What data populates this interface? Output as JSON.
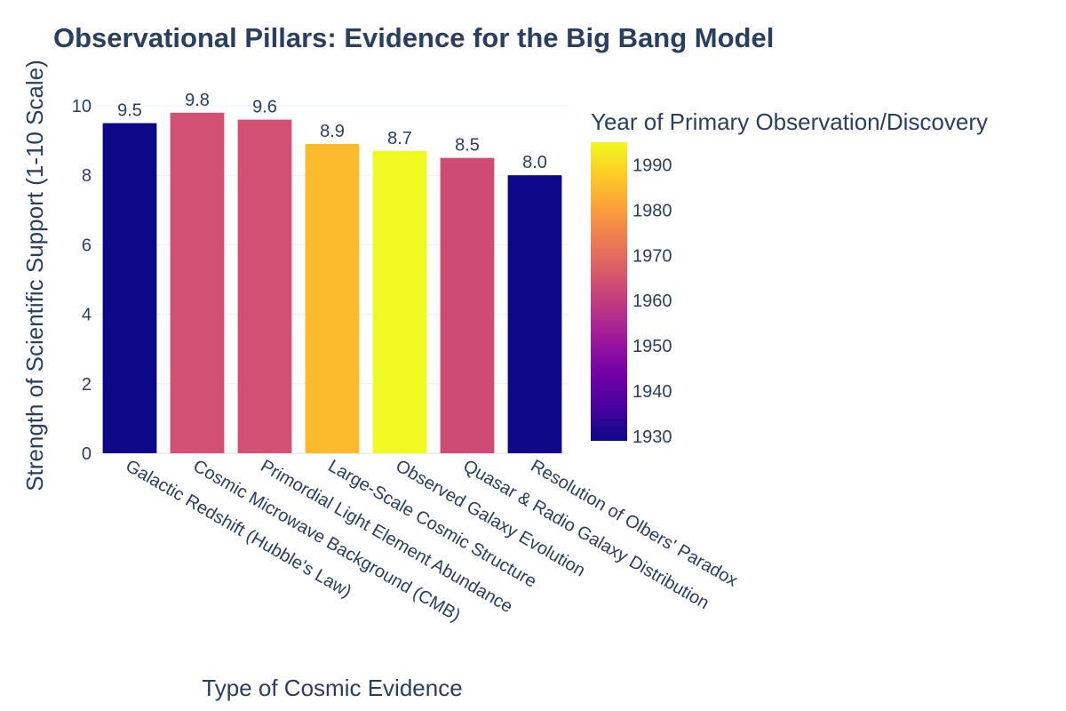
{
  "chart_data": {
    "type": "bar",
    "title": "Observational Pillars: Evidence for the Big Bang Model",
    "xlabel": "Type of Cosmic Evidence",
    "ylabel": "Strength of Scientific Support (1-10 Scale)",
    "ylim": [
      0,
      10
    ],
    "yticks": [
      "0",
      "2",
      "4",
      "6",
      "8",
      "10"
    ],
    "categories": [
      "Galactic Redshift (Hubble's Law)",
      "Cosmic Microwave Background (CMB)",
      "Primordial Light Element Abundance",
      "Large-Scale Cosmic Structure",
      "Observed Galaxy Evolution",
      "Quasar & Radio Galaxy Distribution",
      "Resolution of Olbers' Paradox"
    ],
    "values": [
      9.5,
      9.8,
      9.6,
      8.9,
      8.7,
      8.5,
      8.0
    ],
    "value_labels": [
      "9.5",
      "9.8",
      "9.6",
      "8.9",
      "8.7",
      "8.5",
      "8.0"
    ],
    "color_values": [
      1929,
      1964,
      1964,
      1985,
      1995,
      1963,
      1929
    ],
    "grid": true,
    "colorbar": {
      "title": "Year of Primary Observation/Discovery",
      "range": [
        1929,
        1995
      ],
      "ticks": [
        "1930",
        "1940",
        "1950",
        "1960",
        "1970",
        "1980",
        "1990"
      ],
      "colorscale": [
        "#0d0887",
        "#46039f",
        "#7201a8",
        "#9c179e",
        "#bd3786",
        "#d8576b",
        "#ed7953",
        "#fb9f3a",
        "#fdca26",
        "#f0f921"
      ]
    }
  }
}
